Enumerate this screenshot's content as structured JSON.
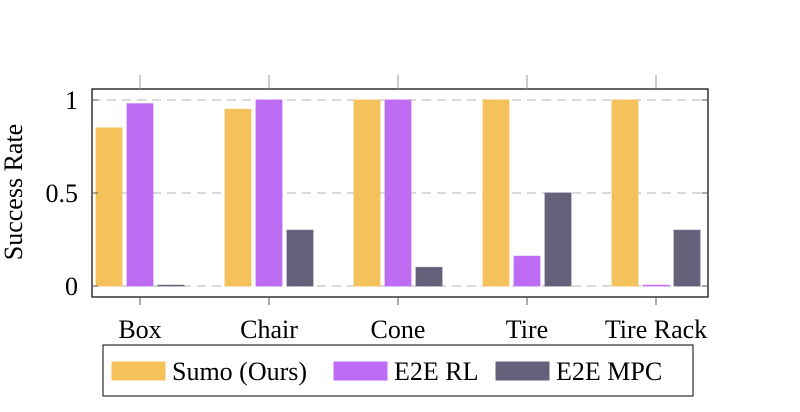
{
  "chart_data": {
    "type": "bar",
    "title": "",
    "xlabel": "",
    "ylabel": "Success Rate",
    "categories": [
      "Box",
      "Chair",
      "Cone",
      "Tire",
      "Tire Rack"
    ],
    "series": [
      {
        "name": "Sumo (Ours)",
        "color": "#f5c15b",
        "values": [
          0.85,
          0.95,
          1.0,
          1.0,
          1.0
        ]
      },
      {
        "name": "E2E RL",
        "color": "#bf6cf5",
        "values": [
          0.98,
          1.0,
          1.0,
          0.16,
          0.0
        ]
      },
      {
        "name": "E2E MPC",
        "color": "#64617a",
        "values": [
          0.0,
          0.3,
          0.1,
          0.5,
          0.3
        ]
      }
    ],
    "ylim": [
      0,
      1
    ],
    "yticks": [
      0,
      0.5,
      1
    ],
    "ytick_labels": [
      "0",
      "0.5",
      "1"
    ],
    "grid": "horizontal dashed",
    "legend": "bottom"
  }
}
